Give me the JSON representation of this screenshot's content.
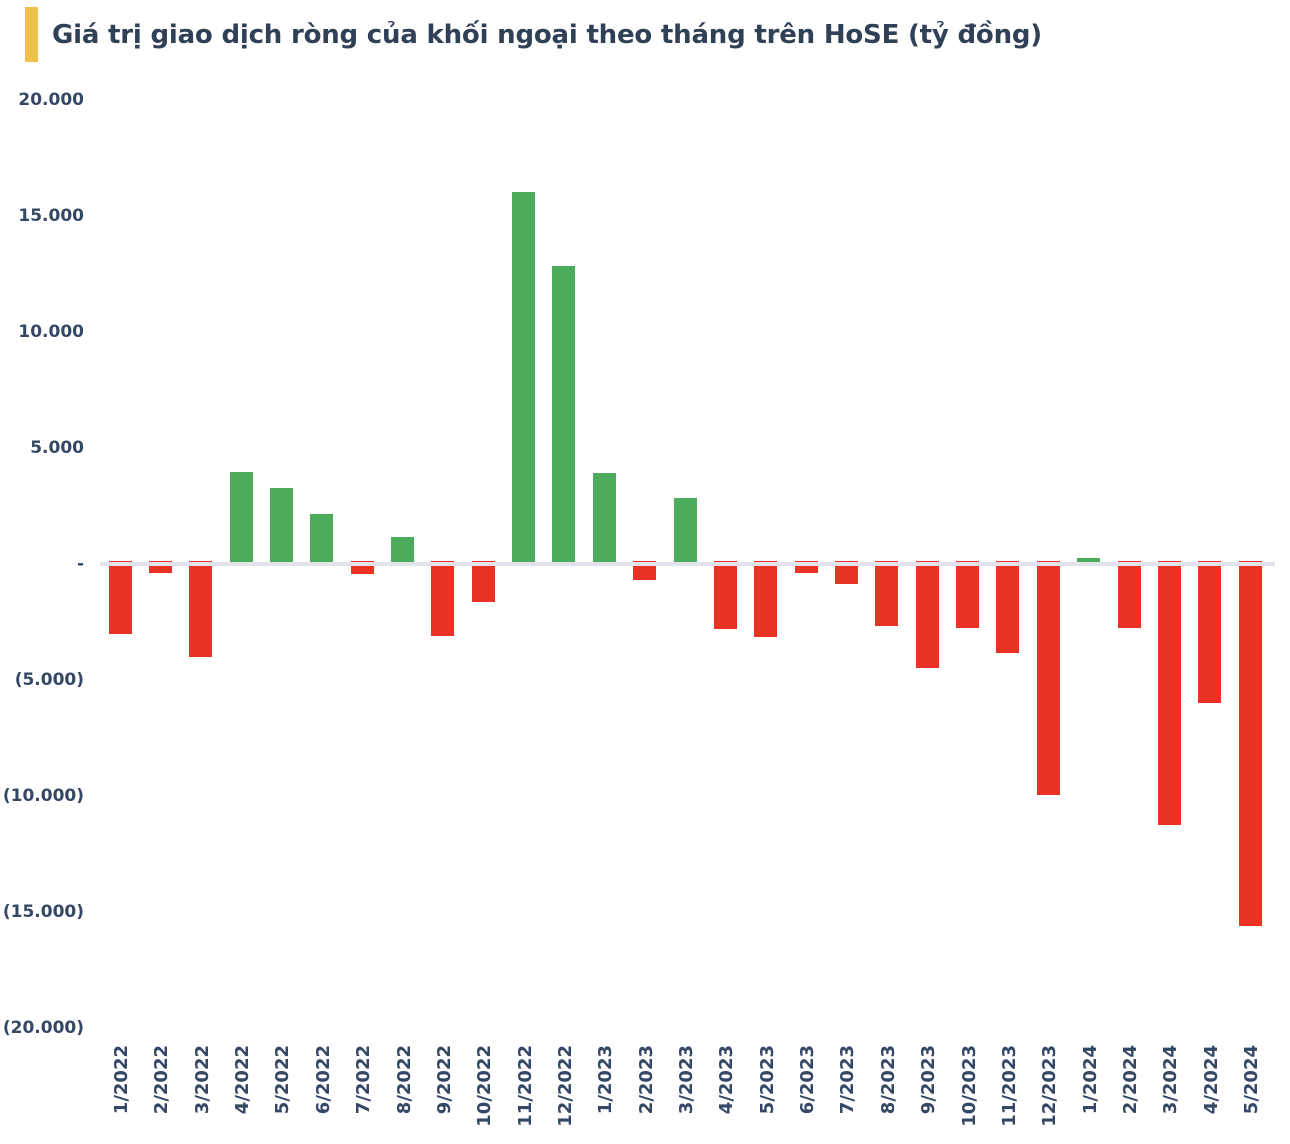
{
  "title": {
    "text": "Giá trị giao dịch ròng của khối ngoại theo tháng trên HoSE (tỷ đồng)",
    "accent_color": "#F0C04D",
    "text_color": "#2F4057"
  },
  "chart_data": {
    "type": "bar",
    "title": "Giá trị giao dịch ròng của khối ngoại theo tháng trên HoSE (tỷ đồng)",
    "xlabel": "",
    "ylabel": "",
    "unit": "tỷ đồng",
    "categories": [
      "1/2022",
      "2/2022",
      "3/2022",
      "4/2022",
      "5/2022",
      "6/2022",
      "7/2022",
      "8/2022",
      "9/2022",
      "10/2022",
      "11/2022",
      "12/2022",
      "1/2023",
      "2/2023",
      "3/2023",
      "4/2023",
      "5/2023",
      "6/2023",
      "7/2023",
      "8/2023",
      "9/2023",
      "10/2023",
      "11/2023",
      "12/2023",
      "1/2024",
      "2/2024",
      "3/2024",
      "4/2024",
      "5/2024"
    ],
    "values": [
      -3000,
      -400,
      -4000,
      3950,
      3280,
      2160,
      -430,
      1160,
      -3100,
      -1650,
      16050,
      12840,
      3920,
      -690,
      2840,
      -2800,
      -3150,
      -390,
      -860,
      -2670,
      -4480,
      -2760,
      -3840,
      -9960,
      260,
      -2760,
      -11260,
      -5990,
      -15610
    ],
    "ylim": [
      -20000,
      20000
    ],
    "y_ticks": [
      {
        "value": 20000,
        "label": "20.000"
      },
      {
        "value": 15000,
        "label": "15.000"
      },
      {
        "value": 10000,
        "label": "10.000"
      },
      {
        "value": 5000,
        "label": "5.000"
      },
      {
        "value": 0,
        "label": "-"
      },
      {
        "value": -5000,
        "label": "(5.000)"
      },
      {
        "value": -10000,
        "label": "(10.000)"
      },
      {
        "value": -15000,
        "label": "(15.000)"
      },
      {
        "value": -20000,
        "label": "(20.000)"
      }
    ],
    "grid": "zero-line-only",
    "legend": "none",
    "x_label_rotation": -90,
    "colors": {
      "positive": "#4DAB5C",
      "negative": "#E93223",
      "zero_line": "#E3E4EB",
      "axis_text": "#344765"
    }
  }
}
